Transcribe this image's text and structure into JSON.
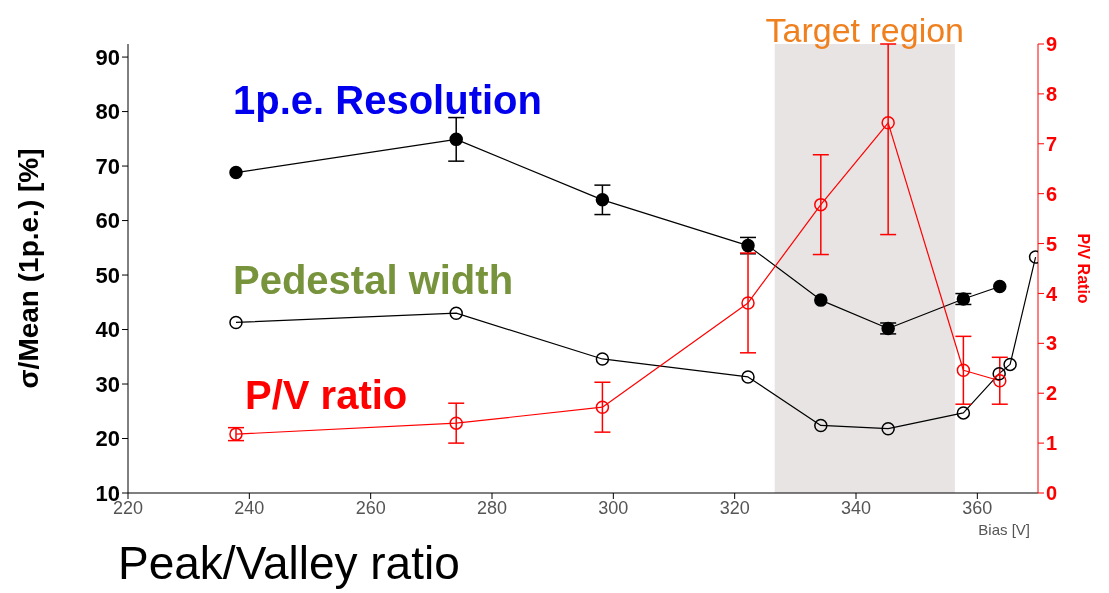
{
  "chart_data": {
    "type": "line",
    "xlabel": "Bias [V]",
    "ylabel": "σ/Mean (1p.e.) [%]",
    "y2label": "P/V Ratio",
    "xlim": [
      220,
      370
    ],
    "xticks": [
      220,
      240,
      260,
      280,
      300,
      320,
      340,
      360
    ],
    "ylim": [
      10,
      92.4
    ],
    "yticks": [
      10,
      20,
      30,
      40,
      50,
      60,
      70,
      80,
      90
    ],
    "y2lim": [
      0,
      9
    ],
    "y2ticks": [
      0,
      1,
      2,
      3,
      4,
      5,
      6,
      7,
      8,
      9
    ],
    "marker": "circle",
    "line_style": "solid",
    "bands": [
      {
        "axis": "x",
        "from": 326.6,
        "to": 356.3,
        "label": "Target region",
        "color": "#e8e4e4"
      }
    ],
    "annotations": [
      "Peak/Valley ratio"
    ],
    "series": [
      {
        "name": "1p.e. Resolution",
        "color": "#000000",
        "x": [
          237.8,
          274.1,
          298.2,
          322.2,
          334.2,
          345.3,
          357.7,
          363.7
        ],
        "values": [
          68.8,
          74.9,
          63.8,
          55.4,
          45.4,
          40.2,
          45.6,
          47.9
        ],
        "errors": [
          null,
          4,
          2.7,
          1.5,
          null,
          1,
          1,
          null
        ]
      },
      {
        "name": "Pedestal width",
        "color": "#000000",
        "x": [
          237.8,
          274.1,
          298.2,
          322.2,
          334.2,
          345.3,
          357.7,
          363.6,
          365.4,
          369.6
        ],
        "values": [
          41.3,
          43.0,
          34.6,
          31.3,
          22.4,
          21.8,
          24.7,
          31.9,
          33.6,
          53.3
        ]
      },
      {
        "name": "P/V ratio",
        "color": "#ff0000",
        "axis": "y2",
        "x": [
          237.8,
          274.1,
          298.2,
          322.2,
          334.2,
          345.3,
          357.7,
          363.7
        ],
        "values": [
          1.18,
          1.4,
          1.72,
          3.81,
          5.78,
          7.42,
          2.46,
          2.25
        ],
        "errors": [
          0.13,
          0.4,
          0.5,
          1.0,
          1.0,
          [
            5.18,
            9
          ],
          0.68,
          0.47
        ]
      }
    ]
  }
}
